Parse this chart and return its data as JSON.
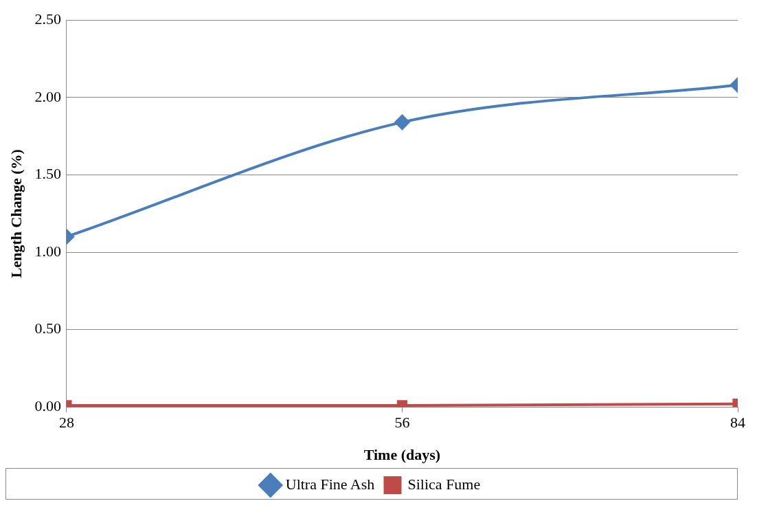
{
  "chart_data": {
    "type": "line",
    "xlabel": "Time (days)",
    "ylabel": "Length Change (%)",
    "x": [
      28,
      56,
      84
    ],
    "xlim": [
      28,
      84
    ],
    "xticks": [
      28,
      56,
      84
    ],
    "ylim": [
      0,
      2.5
    ],
    "yticks": [
      {
        "value": 0,
        "label": "0.00"
      },
      {
        "value": 0.5,
        "label": "0.50"
      },
      {
        "value": 1,
        "label": "1.00"
      },
      {
        "value": 1.5,
        "label": "1.50"
      },
      {
        "value": 2,
        "label": "2.00"
      },
      {
        "value": 2.5,
        "label": "2.50"
      }
    ],
    "grid": "y",
    "legend": "bottom",
    "series": [
      {
        "name": "Ultra Fine Ash",
        "color": "#4a7ebb",
        "marker": "diamond",
        "values": [
          1.1,
          1.84,
          2.08
        ]
      },
      {
        "name": "Silica Fume",
        "color": "#be4b48",
        "marker": "square",
        "values": [
          0.01,
          0.01,
          0.02
        ]
      }
    ]
  }
}
